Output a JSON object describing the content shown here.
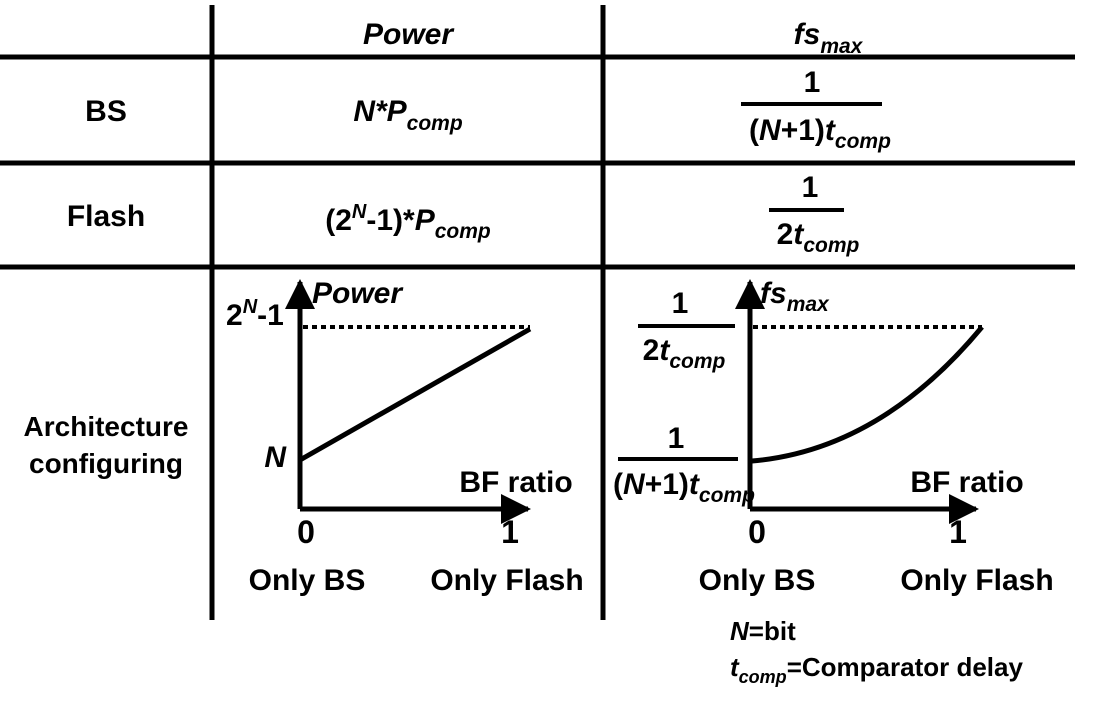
{
  "header": {
    "power": "Power",
    "fsmax_main": "fs",
    "fsmax_sub": "max"
  },
  "rows": {
    "bs": {
      "label": "BS",
      "power_n": "N",
      "power_star": "*P",
      "power_sub": "comp",
      "fs_num": "1",
      "fs_den_open": "(",
      "fs_den_n": "N",
      "fs_den_plus1": "+1)",
      "fs_den_t": "t",
      "fs_den_sub": "comp"
    },
    "flash": {
      "label": "Flash",
      "power_open": "(2",
      "power_sup": "N",
      "power_rest": "-1)*",
      "power_p": "P",
      "power_sub": "comp",
      "fs_num": "1",
      "fs_den_2": "2",
      "fs_den_t": "t",
      "fs_den_sub": "comp"
    },
    "arch": {
      "label_line1": "Architecture",
      "label_line2": "configuring"
    }
  },
  "power_plot": {
    "y_title": "Power",
    "y_top_base": "2",
    "y_top_sup": "N",
    "y_top_rest": "-1",
    "y_low": "N",
    "x_title": "BF ratio",
    "x_tick0": "0",
    "x_tick1": "1",
    "x_desc0": "Only BS",
    "x_desc1": "Only Flash"
  },
  "fs_plot": {
    "y_title_main": "fs",
    "y_title_sub": "max",
    "top_num": "1",
    "top_den_2": "2",
    "top_den_t": "t",
    "top_den_sub": "comp",
    "low_num": "1",
    "low_den_open": "(",
    "low_den_n": "N",
    "low_den_plus1": "+1)",
    "low_den_t": "t",
    "low_den_sub": "comp",
    "x_title": "BF ratio",
    "x_tick0": "0",
    "x_tick1": "1",
    "x_desc0": "Only BS",
    "x_desc1": "Only Flash"
  },
  "footnote": {
    "n": "N",
    "n_def": "=bit",
    "t": "t",
    "t_sub": "comp",
    "t_def": "=Comparator delay"
  }
}
